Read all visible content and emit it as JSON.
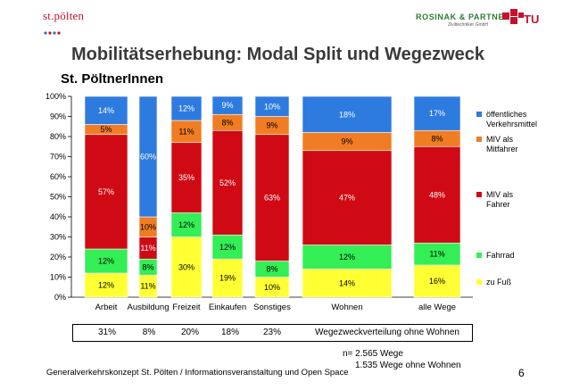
{
  "logos": {
    "left_name": "st.pölten",
    "left_sub": "…",
    "right_name": "ROSINAK & PARTNER",
    "right_sub": "Ziviltechniker GmbH",
    "tu_text": "TU"
  },
  "title": "Mobilitätserhebung: Modal Split und Wegezweck",
  "subtitle": "St. PöltnerInnen",
  "colors": {
    "fuss": "#ffff33",
    "fahrrad": "#33ee55",
    "miv_fahrer": "#d00a14",
    "miv_mitfahrer": "#f07d23",
    "oev": "#2e7be0"
  },
  "chart_data": {
    "type": "bar",
    "stacked": true,
    "categories": [
      "Arbeit",
      "Ausbildung",
      "Freizeit",
      "Einkaufen",
      "Sonstiges",
      "Wohnen",
      "alle Wege"
    ],
    "series": [
      {
        "name": "zu Fuß",
        "color": "#ffff33",
        "values": [
          12,
          11,
          30,
          19,
          10,
          14,
          16
        ],
        "labels": [
          "12%",
          "11%",
          "30%",
          "19%",
          "10%",
          "14%",
          "16%"
        ]
      },
      {
        "name": "Fahrrad",
        "color": "#33ee55",
        "values": [
          12,
          8,
          12,
          12,
          8,
          12,
          11
        ],
        "labels": [
          "12%",
          "8%",
          "12%",
          "12%",
          "8%",
          "12%",
          "11%"
        ]
      },
      {
        "name": "MIV als Fahrer",
        "color": "#d00a14",
        "values": [
          57,
          11,
          35,
          52,
          63,
          47,
          48
        ],
        "labels": [
          "57%",
          "11%",
          "35%",
          "52%",
          "63%",
          "47%",
          "48%"
        ]
      },
      {
        "name": "MIV als Mitfahrer",
        "color": "#f07d23",
        "values": [
          5,
          10,
          11,
          8,
          9,
          9,
          8
        ],
        "labels": [
          "5%",
          "10%",
          "11%",
          "8%",
          "9%",
          "9%",
          "8%"
        ]
      },
      {
        "name": "öffentliches Verkehrsmittel",
        "color": "#2e7be0",
        "values": [
          14,
          60,
          12,
          9,
          10,
          18,
          17
        ],
        "labels": [
          "14%",
          "60%",
          "12%",
          "9%",
          "10%",
          "18%",
          "17%"
        ]
      }
    ],
    "y_ticks": [
      "0%",
      "10%",
      "20%",
      "30%",
      "40%",
      "50%",
      "60%",
      "70%",
      "80%",
      "90%",
      "100%"
    ],
    "ylim": [
      0,
      100
    ],
    "legend_placement": "right",
    "legend": [
      {
        "lines": [
          "öffentliches",
          "Verkehrsmittel"
        ],
        "color": "#2e7be0"
      },
      {
        "lines": [
          "MIV als",
          "Mitfahrer"
        ],
        "color": "#f07d23"
      },
      {
        "lines": [
          "MIV als",
          "Fahrer"
        ],
        "color": "#d00a14"
      },
      {
        "lines": [
          "Fahrrad"
        ],
        "color": "#33ee55"
      },
      {
        "lines": [
          "zu Fuß"
        ],
        "color": "#ffff33"
      }
    ]
  },
  "summary": {
    "values": [
      "31%",
      "8%",
      "20%",
      "18%",
      "23%"
    ],
    "label": "Wegezweckverteilung ohne Wohnen"
  },
  "notes": {
    "n_total": "n= 2.565 Wege",
    "n_without": "1.535 Wege ohne Wohnen"
  },
  "footer": {
    "text": "Generalverkehrskonzept St. Pölten / Informationsveranstaltung und Open Space",
    "page": "6"
  }
}
